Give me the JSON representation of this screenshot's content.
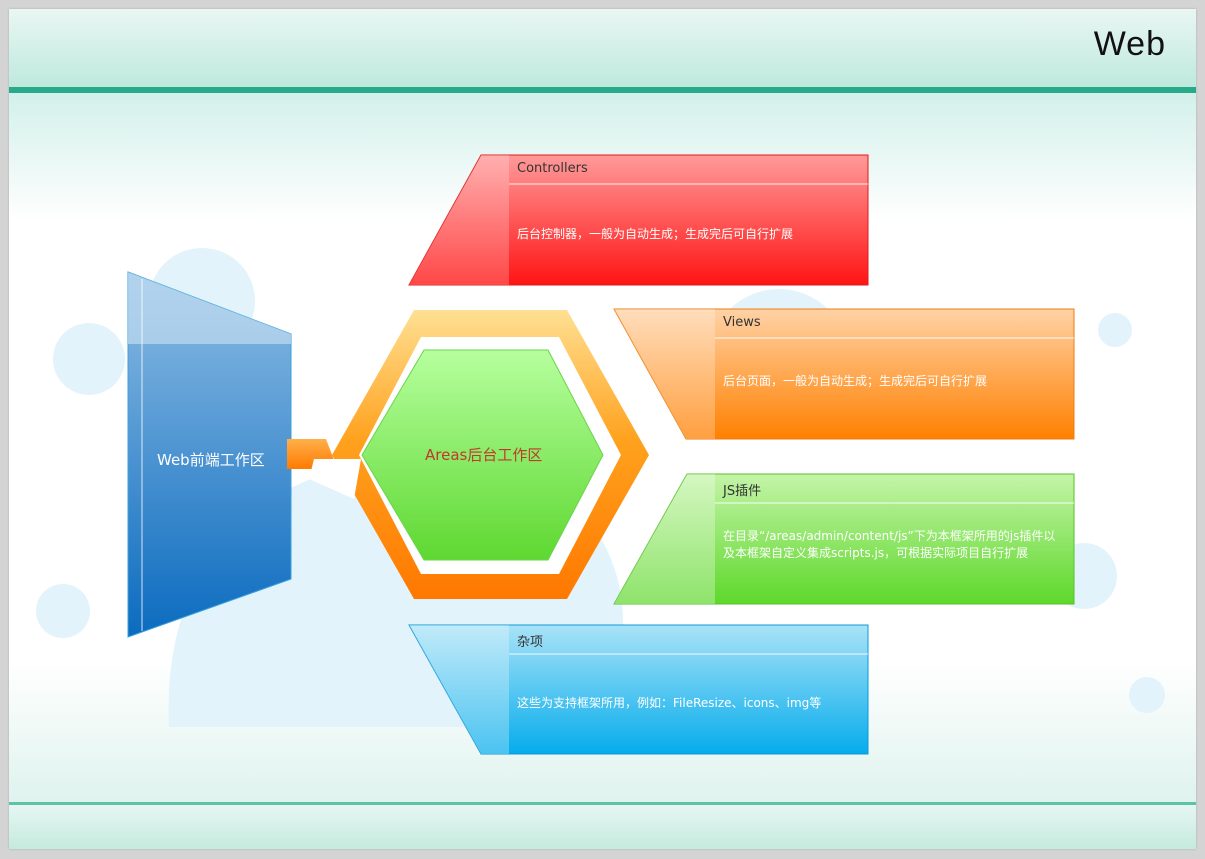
{
  "title": "Web",
  "left_block": {
    "label": "Web前端工作区"
  },
  "center": {
    "label": "Areas后台工作区"
  },
  "boxes": [
    {
      "title": "Controllers",
      "desc": "后台控制器，一般为自动生成；生成完后可自行扩展",
      "color": "#ff1a1a"
    },
    {
      "title": "Views",
      "desc": "后台页面，一般为自动生成；生成完后可自行扩展",
      "color": "#ff8a10"
    },
    {
      "title": "JS插件",
      "desc": "在目录“/areas/admin/content/js”下为本框架所用的js插件以及本框架自定义集成scripts.js，可根据实际项目自行扩展",
      "color": "#66dd33"
    },
    {
      "title": "杂项",
      "desc": "这些为支持框架所用，例如：FileResize、icons、img等",
      "color": "#0bb0ee"
    }
  ]
}
